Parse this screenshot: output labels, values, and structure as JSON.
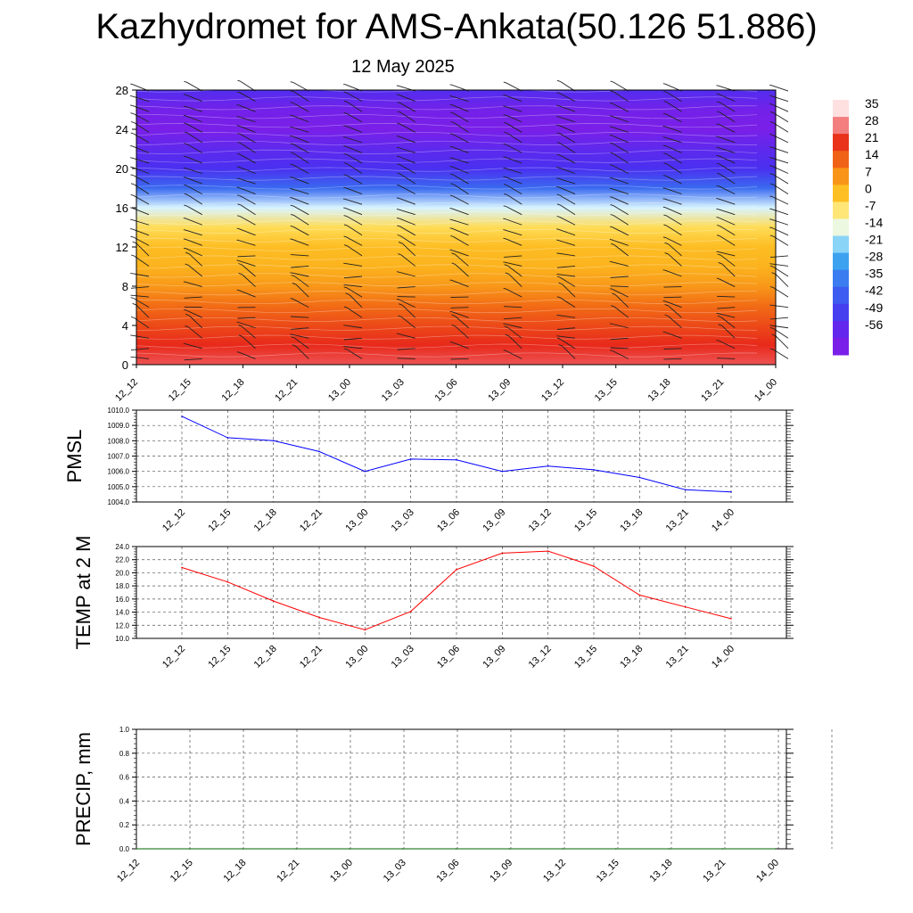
{
  "title": "Kazhydromet for AMS-Ankata(50.126 51.886)",
  "subtitle": "12 May 2025",
  "chart_data": [
    {
      "type": "heatmap",
      "name": "temperature-cross-section",
      "x_ticks": [
        "12_12",
        "12_15",
        "12_18",
        "12_21",
        "13_00",
        "13_03",
        "13_06",
        "13_09",
        "13_12",
        "13_15",
        "13_18",
        "13_21",
        "14_00"
      ],
      "y_ticks": [
        0,
        4,
        8,
        12,
        16,
        20,
        24,
        28
      ],
      "ylim": [
        0,
        28
      ],
      "colorbar_labels": [
        35,
        28,
        21,
        14,
        7,
        0,
        -7,
        -14,
        -21,
        -28,
        -35,
        -42,
        -49,
        -56
      ],
      "levels": [
        28,
        26,
        24,
        22,
        20,
        18,
        16,
        14,
        12,
        10,
        8,
        6,
        4,
        2,
        0
      ],
      "temperature_profile": [
        30,
        26,
        21,
        16,
        10,
        6,
        4,
        -2,
        -14,
        -35,
        -49,
        -52,
        -56,
        -55,
        -50
      ],
      "colors": {
        "hot": "#e8201c",
        "orange": "#f46a12",
        "yellow": "#ffea3c",
        "pale": "#fffff0",
        "cyan": "#3cb4f0",
        "blue": "#3a5af0",
        "violet": "#5b1fe8"
      }
    },
    {
      "type": "line",
      "name": "pmsl",
      "ylabel": "PMSL",
      "categories": [
        "12_12",
        "12_15",
        "12_18",
        "12_21",
        "13_00",
        "13_03",
        "13_06",
        "13_09",
        "13_12",
        "13_15",
        "13_18",
        "13_21",
        "14_00"
      ],
      "values": [
        1009.6,
        1008.2,
        1008.0,
        1007.3,
        1006.0,
        1006.8,
        1006.75,
        1006.0,
        1006.35,
        1006.1,
        1005.6,
        1004.8,
        1004.65
      ],
      "ylim": [
        1004.0,
        1010.0
      ],
      "y_ticks": [
        "1004.0",
        "1005.0",
        "1006.0",
        "1007.0",
        "1008.0",
        "1009.0",
        "1010.0"
      ],
      "color": "#0000ff"
    },
    {
      "type": "line",
      "name": "temp-2m",
      "ylabel": "TEMP at 2 M",
      "categories": [
        "12_12",
        "12_15",
        "12_18",
        "12_21",
        "13_00",
        "13_03",
        "13_06",
        "13_09",
        "13_12",
        "13_15",
        "13_18",
        "13_21",
        "14_00"
      ],
      "values": [
        20.8,
        18.6,
        15.7,
        13.2,
        11.3,
        14.1,
        20.5,
        23.0,
        23.3,
        21.0,
        16.6,
        14.8,
        13.0
      ],
      "ylim": [
        10.0,
        24.0
      ],
      "y_ticks": [
        "10.0",
        "12.0",
        "14.0",
        "16.0",
        "18.0",
        "20.0",
        "22.0",
        "24.0"
      ],
      "color": "#ff0000"
    },
    {
      "type": "line",
      "name": "precip",
      "ylabel": "PRECIP, mm",
      "categories": [
        "12_12",
        "12_15",
        "12_18",
        "12_21",
        "13_00",
        "13_03",
        "13_06",
        "13_09",
        "13_12",
        "13_15",
        "13_18",
        "13_21",
        "14_00"
      ],
      "values": [
        0,
        0,
        0,
        0,
        0,
        0,
        0,
        0,
        0,
        0,
        0,
        0,
        0
      ],
      "ylim": [
        0.0,
        1.0
      ],
      "y_ticks": [
        "0.0",
        "0.2",
        "0.4",
        "0.6",
        "0.8",
        "1.0"
      ],
      "color": "#006400"
    }
  ]
}
